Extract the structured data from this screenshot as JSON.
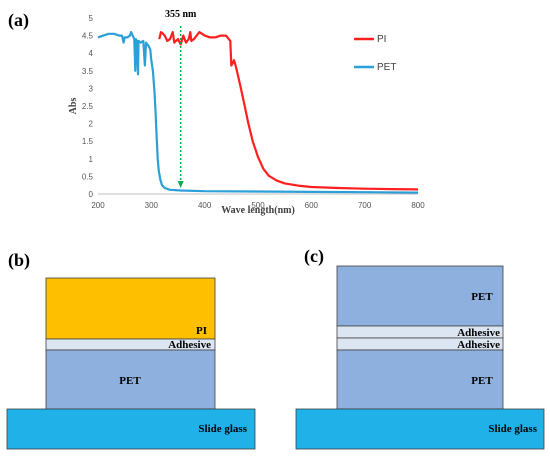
{
  "panels": {
    "a": "(a)",
    "b": "(b)",
    "c": "(c)"
  },
  "chart_data": {
    "type": "line",
    "xlabel": "Wave length(nm)",
    "ylabel": "Abs",
    "xlim": [
      200,
      800
    ],
    "ylim": [
      0,
      5
    ],
    "xticks": [
      200,
      300,
      400,
      500,
      600,
      700,
      800
    ],
    "yticks": [
      0,
      0.5,
      1,
      1.5,
      2,
      2.5,
      3,
      3.5,
      4,
      4.5,
      5
    ],
    "grid": false,
    "legend_position": "top-right",
    "annotation": {
      "text": "355 nm",
      "x": 355
    },
    "series": [
      {
        "name": "PI",
        "color": "#ff1f1f",
        "points": [
          [
            315,
            4.4
          ],
          [
            318,
            4.6
          ],
          [
            322,
            4.55
          ],
          [
            325,
            4.5
          ],
          [
            330,
            4.35
          ],
          [
            335,
            4.4
          ],
          [
            340,
            4.6
          ],
          [
            343,
            4.3
          ],
          [
            350,
            4.4
          ],
          [
            355,
            4.25
          ],
          [
            360,
            4.5
          ],
          [
            365,
            4.3
          ],
          [
            370,
            4.4
          ],
          [
            373,
            4.6
          ],
          [
            375,
            4.35
          ],
          [
            380,
            4.4
          ],
          [
            385,
            4.5
          ],
          [
            390,
            4.6
          ],
          [
            400,
            4.5
          ],
          [
            410,
            4.45
          ],
          [
            420,
            4.45
          ],
          [
            430,
            4.5
          ],
          [
            440,
            4.5
          ],
          [
            448,
            4.35
          ],
          [
            450,
            3.65
          ],
          [
            452,
            3.7
          ],
          [
            455,
            3.8
          ],
          [
            458,
            3.65
          ],
          [
            462,
            3.4
          ],
          [
            468,
            3.0
          ],
          [
            475,
            2.5
          ],
          [
            482,
            2.0
          ],
          [
            490,
            1.5
          ],
          [
            500,
            1.05
          ],
          [
            510,
            0.72
          ],
          [
            520,
            0.52
          ],
          [
            535,
            0.38
          ],
          [
            550,
            0.3
          ],
          [
            575,
            0.24
          ],
          [
            600,
            0.2
          ],
          [
            650,
            0.17
          ],
          [
            700,
            0.15
          ],
          [
            750,
            0.14
          ],
          [
            800,
            0.13
          ]
        ]
      },
      {
        "name": "PET",
        "color": "#2a9fd8",
        "points": [
          [
            200,
            4.45
          ],
          [
            210,
            4.5
          ],
          [
            220,
            4.55
          ],
          [
            230,
            4.55
          ],
          [
            240,
            4.5
          ],
          [
            245,
            4.5
          ],
          [
            248,
            4.3
          ],
          [
            250,
            4.45
          ],
          [
            255,
            4.45
          ],
          [
            260,
            4.5
          ],
          [
            262,
            4.6
          ],
          [
            265,
            4.5
          ],
          [
            268,
            4.4
          ],
          [
            270,
            3.5
          ],
          [
            271,
            4.4
          ],
          [
            273,
            4.35
          ],
          [
            275,
            3.4
          ],
          [
            276,
            4.35
          ],
          [
            280,
            4.3
          ],
          [
            285,
            4.35
          ],
          [
            288,
            3.65
          ],
          [
            290,
            4.3
          ],
          [
            295,
            4.2
          ],
          [
            298,
            4.1
          ],
          [
            300,
            3.8
          ],
          [
            303,
            3.5
          ],
          [
            306,
            2.9
          ],
          [
            308,
            2.3
          ],
          [
            310,
            1.6
          ],
          [
            312,
            1.0
          ],
          [
            314,
            0.65
          ],
          [
            317,
            0.4
          ],
          [
            320,
            0.25
          ],
          [
            325,
            0.17
          ],
          [
            335,
            0.12
          ],
          [
            355,
            0.1
          ],
          [
            400,
            0.08
          ],
          [
            500,
            0.07
          ],
          [
            600,
            0.06
          ],
          [
            700,
            0.05
          ],
          [
            800,
            0.04
          ]
        ]
      }
    ]
  },
  "diagram_b": {
    "pi": "PI",
    "adhesive": "Adhesive",
    "pet": "PET",
    "slide_glass": "Slide glass",
    "colors": {
      "pi": "#fdbf00",
      "adhesive": "#dce6f2",
      "pet": "#8db0df",
      "slide_glass": "#1fb1e8"
    }
  },
  "diagram_c": {
    "pet_top": "PET",
    "adhesive_1": "Adhesive",
    "adhesive_2": "Adhesive",
    "pet_bottom": "PET",
    "slide_glass": "Slide glass",
    "colors": {
      "adhesive": "#dce6f2",
      "pet": "#8db0df",
      "slide_glass": "#1fb1e8"
    }
  }
}
